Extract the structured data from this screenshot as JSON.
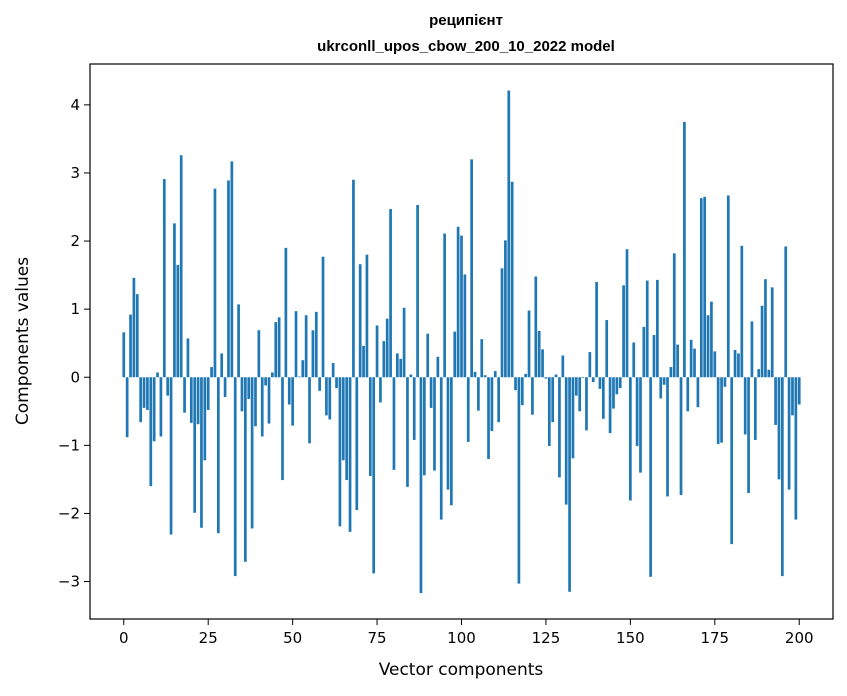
{
  "chart_data": {
    "type": "bar",
    "title_line1": "реципієнт",
    "title_line2": "ukrconll_upos_cbow_200_10_2022 model",
    "xlabel": "Vector components",
    "ylabel": "Components values",
    "xlim": [
      -10,
      210
    ],
    "ylim": [
      -3.55,
      4.6
    ],
    "xticks": [
      0,
      25,
      50,
      75,
      100,
      125,
      150,
      175,
      200
    ],
    "yticks": [
      -3,
      -2,
      -1,
      0,
      1,
      2,
      3,
      4
    ],
    "ytick_labels": [
      "−3",
      "−2",
      "−1",
      "0",
      "1",
      "2",
      "3",
      "4"
    ],
    "bar_color": "#1f77b4",
    "grid": false,
    "values": [
      0.66,
      -0.88,
      0.92,
      1.46,
      1.22,
      -0.66,
      -0.45,
      -0.48,
      -1.6,
      -0.94,
      0.07,
      -0.87,
      2.91,
      -0.27,
      -2.31,
      2.26,
      1.65,
      3.26,
      -0.52,
      0.57,
      -0.67,
      -1.99,
      -0.69,
      -2.21,
      -1.22,
      -0.48,
      0.15,
      2.77,
      -2.29,
      0.35,
      -0.29,
      2.89,
      3.17,
      -2.92,
      1.07,
      -0.5,
      -2.71,
      -0.32,
      -2.22,
      -0.72,
      0.69,
      -0.87,
      -0.12,
      -0.68,
      0.07,
      0.81,
      0.88,
      -1.51,
      1.9,
      -0.4,
      -0.71,
      0.97,
      0.01,
      0.25,
      0.91,
      -0.97,
      0.69,
      0.96,
      -0.2,
      1.77,
      -0.56,
      -0.62,
      0.21,
      -0.16,
      -2.19,
      -1.22,
      -1.51,
      -2.27,
      2.9,
      -1.95,
      1.66,
      0.46,
      1.8,
      -1.45,
      -2.88,
      0.76,
      -0.37,
      0.53,
      0.86,
      2.47,
      -1.36,
      0.35,
      0.27,
      1.02,
      -1.61,
      0.04,
      -0.92,
      2.53,
      -3.17,
      -1.44,
      0.64,
      -0.45,
      -1.37,
      0.3,
      -2.09,
      2.11,
      -1.65,
      -1.88,
      0.67,
      2.21,
      2.08,
      1.51,
      -0.95,
      3.2,
      0.08,
      -0.49,
      0.56,
      0.03,
      -1.2,
      -0.79,
      0.09,
      -0.66,
      1.6,
      2.01,
      4.21,
      2.87,
      -0.19,
      -3.03,
      -0.41,
      0.05,
      0.98,
      -0.55,
      1.48,
      0.68,
      0.41,
      -0.02,
      -1.01,
      -0.66,
      0.04,
      -1.47,
      0.32,
      -1.87,
      -3.15,
      -1.19,
      -0.27,
      -0.5,
      -0.01,
      -0.78,
      0.37,
      -0.07,
      1.4,
      -0.17,
      -0.61,
      0.84,
      -0.82,
      -0.46,
      -0.25,
      -0.16,
      1.35,
      1.88,
      -1.81,
      0.51,
      -1.01,
      -1.4,
      0.74,
      1.42,
      -2.93,
      0.62,
      1.43,
      -0.31,
      -0.11,
      -1.75,
      0.15,
      1.82,
      0.48,
      -1.73,
      3.75,
      -0.5,
      0.55,
      0.42,
      -0.44,
      2.63,
      2.65,
      0.91,
      1.11,
      0.38,
      -0.98,
      -0.96,
      -0.14,
      2.67,
      -2.45,
      0.4,
      0.35,
      1.93,
      -0.84,
      -1.7,
      0.82,
      -0.92,
      0.12,
      1.05,
      1.44,
      0.11,
      1.32,
      -0.7,
      -1.5,
      -2.92,
      1.92,
      -1.65,
      -0.56,
      -2.09,
      -0.4
    ]
  }
}
